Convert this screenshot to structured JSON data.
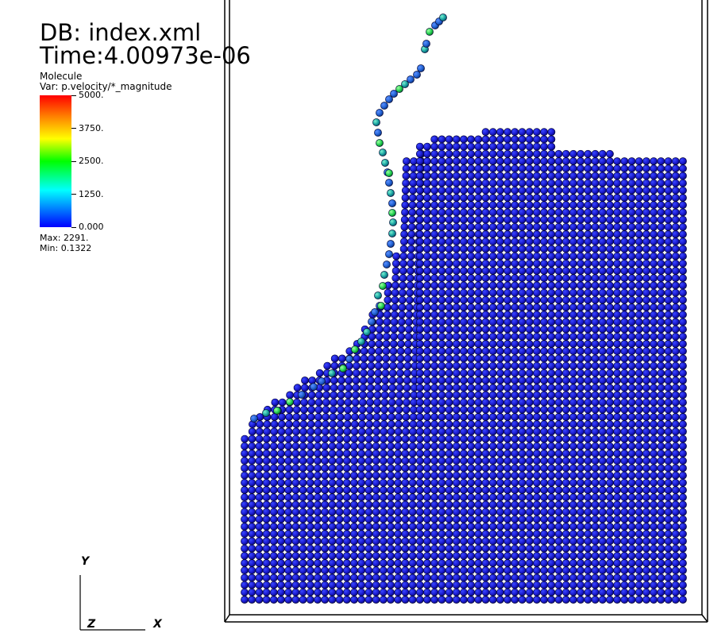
{
  "header": {
    "database": "DB: index.xml",
    "time": "Time:4.00973e-06"
  },
  "legend": {
    "plot_type": "Molecule",
    "variable": "Var: p.velocity/*_magnitude",
    "ticks": [
      "5000.",
      "3750.",
      "2500.",
      "1250.",
      "0.000"
    ],
    "max": "Max:  2291.",
    "min": "Min:  0.1322",
    "colormap": [
      "#ff0000",
      "#ff8000",
      "#ffff00",
      "#00ff00",
      "#00ffff",
      "#0080ff",
      "#0000ff"
    ]
  },
  "axes": {
    "y": "Y",
    "z": "Z",
    "x": "X"
  },
  "colors": {
    "particle_slow": "#1a1ad0",
    "particle_fast": "#20d060",
    "box_outline": "#000000"
  }
}
